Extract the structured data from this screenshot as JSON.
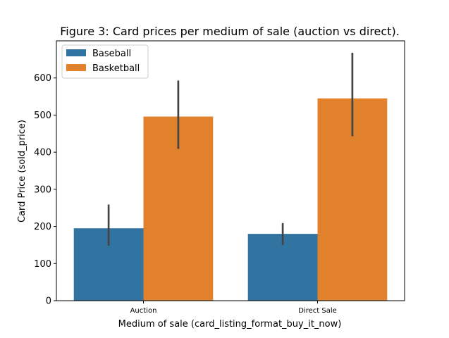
{
  "chart_data": {
    "type": "bar",
    "title": "Figure 3: Card prices per medium of sale (auction vs direct).",
    "xlabel": "Medium of sale (card_listing_format_buy_it_now)",
    "ylabel": "Card Price (sold_price)",
    "categories": [
      "Auction",
      "Direct Sale"
    ],
    "ylim": [
      0,
      700
    ],
    "yticks": [
      0,
      100,
      200,
      300,
      400,
      500,
      600
    ],
    "ytick_labels": [
      "0",
      "100",
      "200",
      "300",
      "400",
      "500",
      "600"
    ],
    "grid": false,
    "legend_position": "top-left",
    "series": [
      {
        "name": "Baseball",
        "color": "#3274a1",
        "values": [
          195,
          180
        ],
        "error_low": [
          148,
          150
        ],
        "error_high": [
          259,
          209
        ]
      },
      {
        "name": "Basketball",
        "color": "#e1812c",
        "values": [
          496,
          545
        ],
        "error_low": [
          409,
          443
        ],
        "error_high": [
          593,
          668
        ]
      }
    ]
  }
}
